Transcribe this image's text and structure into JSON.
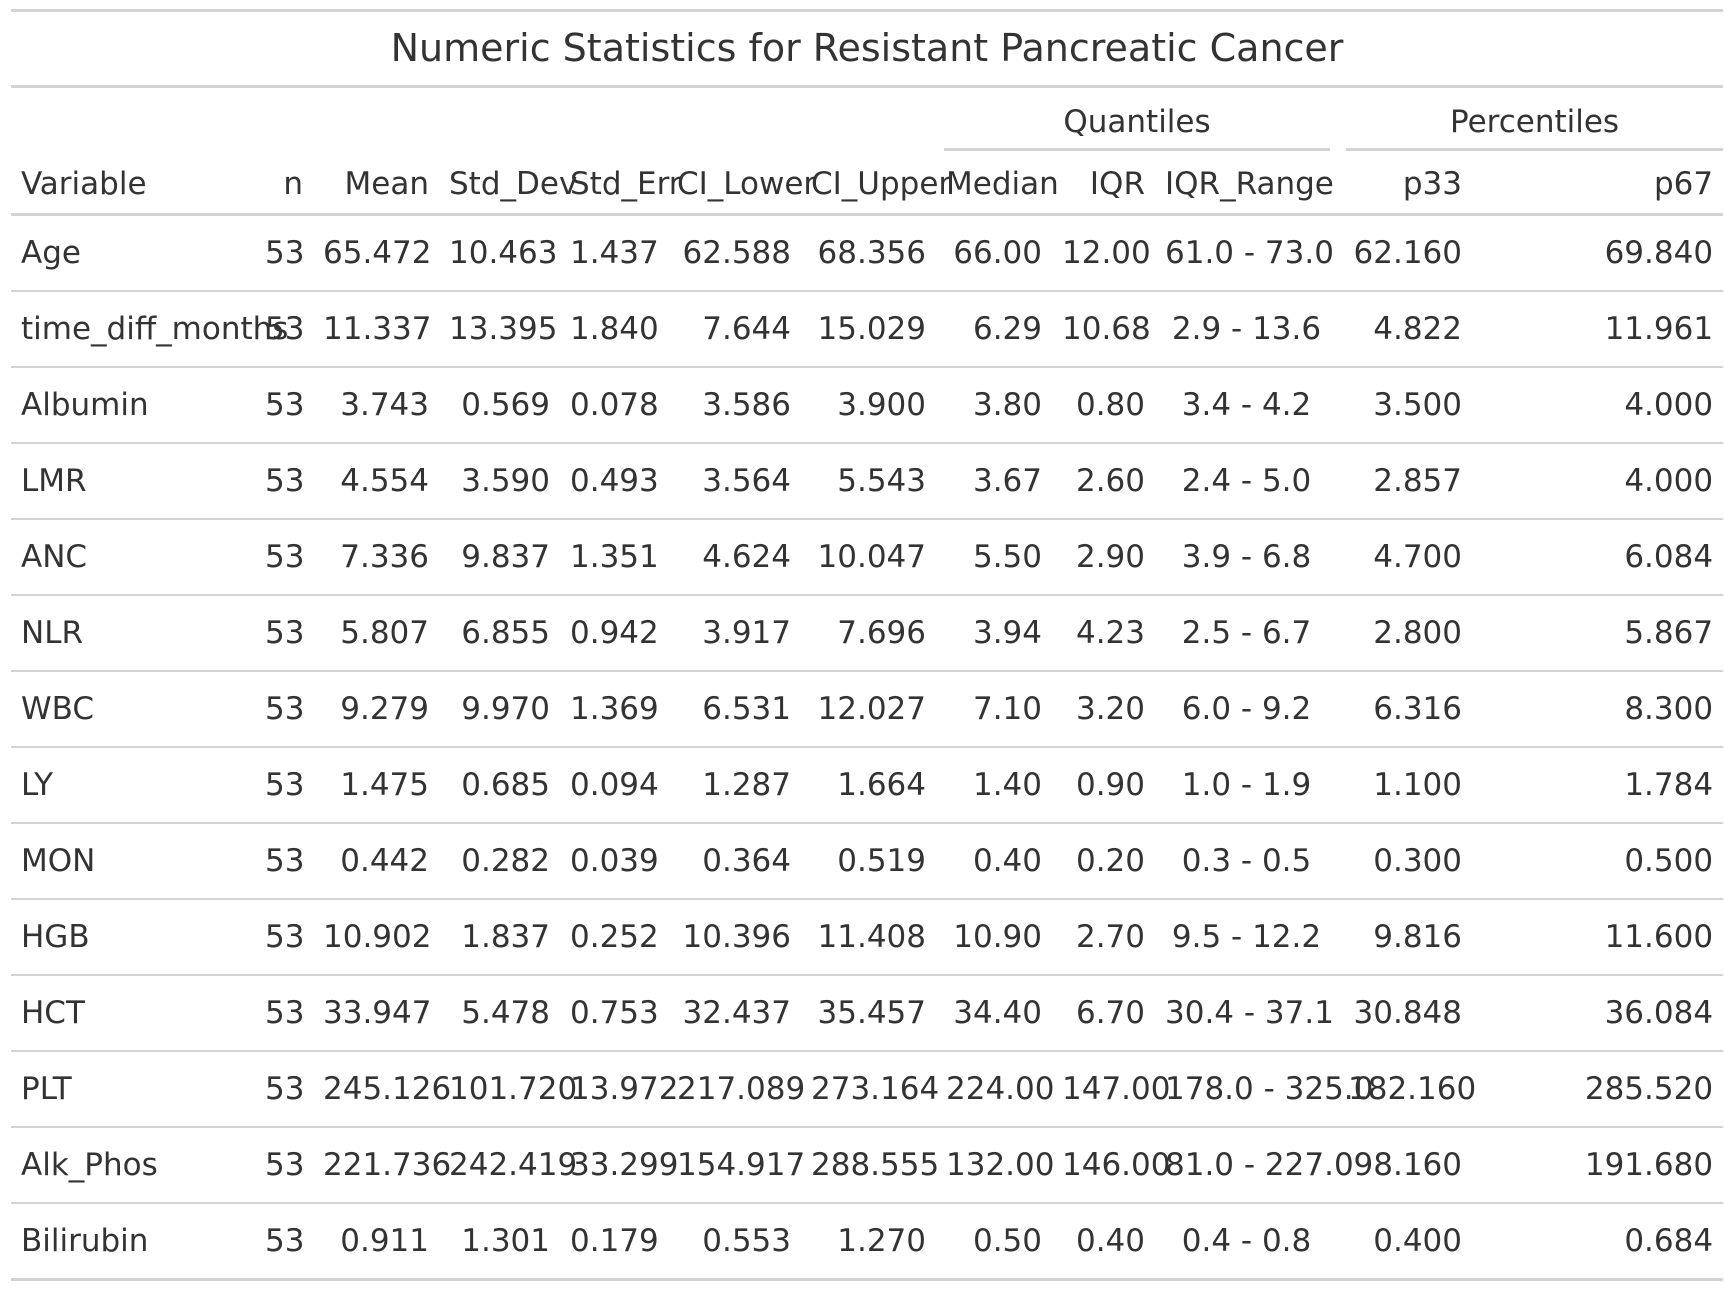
{
  "title": "Numeric Statistics for Resistant Pancreatic Cancer",
  "spanners": {
    "quantiles": "Quantiles",
    "percentiles": "Percentiles"
  },
  "columns": [
    "Variable",
    "n",
    "Mean",
    "Std_Dev",
    "Std_Err",
    "CI_Lower",
    "CI_Upper",
    "Median",
    "IQR",
    "IQR_Range",
    "p33",
    "p67"
  ],
  "rows": [
    [
      "Age",
      "53",
      "65.472",
      "10.463",
      "1.437",
      "62.588",
      "68.356",
      "66.00",
      "12.00",
      "61.0 - 73.0",
      "62.160",
      "69.840"
    ],
    [
      "time_diff_months",
      "53",
      "11.337",
      "13.395",
      "1.840",
      "7.644",
      "15.029",
      "6.29",
      "10.68",
      "2.9 - 13.6",
      "4.822",
      "11.961"
    ],
    [
      "Albumin",
      "53",
      "3.743",
      "0.569",
      "0.078",
      "3.586",
      "3.900",
      "3.80",
      "0.80",
      "3.4 - 4.2",
      "3.500",
      "4.000"
    ],
    [
      "LMR",
      "53",
      "4.554",
      "3.590",
      "0.493",
      "3.564",
      "5.543",
      "3.67",
      "2.60",
      "2.4 - 5.0",
      "2.857",
      "4.000"
    ],
    [
      "ANC",
      "53",
      "7.336",
      "9.837",
      "1.351",
      "4.624",
      "10.047",
      "5.50",
      "2.90",
      "3.9 - 6.8",
      "4.700",
      "6.084"
    ],
    [
      "NLR",
      "53",
      "5.807",
      "6.855",
      "0.942",
      "3.917",
      "7.696",
      "3.94",
      "4.23",
      "2.5 - 6.7",
      "2.800",
      "5.867"
    ],
    [
      "WBC",
      "53",
      "9.279",
      "9.970",
      "1.369",
      "6.531",
      "12.027",
      "7.10",
      "3.20",
      "6.0 - 9.2",
      "6.316",
      "8.300"
    ],
    [
      "LY",
      "53",
      "1.475",
      "0.685",
      "0.094",
      "1.287",
      "1.664",
      "1.40",
      "0.90",
      "1.0 - 1.9",
      "1.100",
      "1.784"
    ],
    [
      "MON",
      "53",
      "0.442",
      "0.282",
      "0.039",
      "0.364",
      "0.519",
      "0.40",
      "0.20",
      "0.3 - 0.5",
      "0.300",
      "0.500"
    ],
    [
      "HGB",
      "53",
      "10.902",
      "1.837",
      "0.252",
      "10.396",
      "11.408",
      "10.90",
      "2.70",
      "9.5 - 12.2",
      "9.816",
      "11.600"
    ],
    [
      "HCT",
      "53",
      "33.947",
      "5.478",
      "0.753",
      "32.437",
      "35.457",
      "34.40",
      "6.70",
      "30.4 - 37.1",
      "30.848",
      "36.084"
    ],
    [
      "PLT",
      "53",
      "245.126",
      "101.720",
      "13.972",
      "217.089",
      "273.164",
      "224.00",
      "147.00",
      "178.0 - 325.0",
      "182.160",
      "285.520"
    ],
    [
      "Alk_Phos",
      "53",
      "221.736",
      "242.419",
      "33.299",
      "154.917",
      "288.555",
      "132.00",
      "146.00",
      "81.0 - 227.0",
      "98.160",
      "191.680"
    ],
    [
      "Bilirubin",
      "53",
      "0.911",
      "1.301",
      "0.179",
      "0.553",
      "1.270",
      "0.50",
      "0.40",
      "0.4 - 0.8",
      "0.400",
      "0.684"
    ]
  ]
}
